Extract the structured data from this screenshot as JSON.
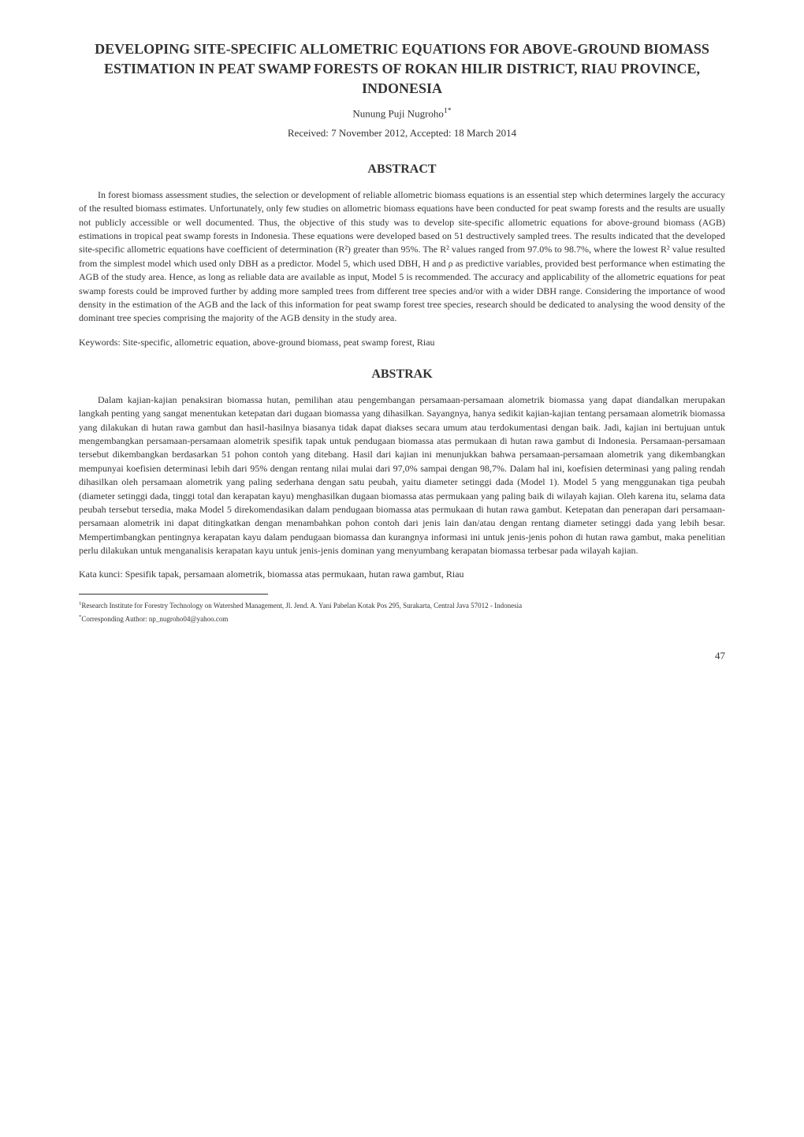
{
  "title": "DEVELOPING SITE-SPECIFIC ALLOMETRIC EQUATIONS FOR ABOVE-GROUND BIOMASS ESTIMATION IN PEAT SWAMP FORESTS OF ROKAN HILIR DISTRICT, RIAU PROVINCE, INDONESIA",
  "author": "Nunung Puji Nugroho",
  "author_sup": "1*",
  "dates": "Received: 7 November 2012, Accepted: 18 March 2014",
  "abstract": {
    "heading": "ABSTRACT",
    "body": "In forest biomass assessment studies, the selection or development of reliable allometric biomass equations is an essential step which determines largely the accuracy of the resulted biomass estimates. Unfortunately, only few studies on allometric biomass equations have been conducted for peat swamp forests and the results are usually not publicly accessible or well documented. Thus, the objective of this study was to develop site-specific allometric equations for above-ground biomass (AGB) estimations in tropical peat swamp forests in Indonesia. These equations were developed based on 51 destructively sampled trees. The results indicated that the developed site-specific allometric equations have coefficient of determination (R²) greater than 95%. The R² values ranged from 97.0% to 98.7%, where the lowest R² value resulted from the simplest model which used only DBH as a predictor. Model 5, which used DBH, H and ρ as predictive variables, provided best performance when estimating the AGB of the study area. Hence, as long as reliable data are available as input, Model 5 is recommended. The accuracy and applicability of the allometric equations for peat swamp forests could be improved further by adding more sampled trees from different tree species and/or with a wider DBH range. Considering the importance of wood density in the estimation of the AGB and the lack of this information for peat swamp forest tree species, research should be dedicated to analysing the wood density of the dominant tree species comprising the majority of the AGB density in the study area.",
    "keywords": "Keywords: Site-specific, allometric equation, above-ground biomass, peat swamp forest, Riau"
  },
  "abstrak": {
    "heading": "ABSTRAK",
    "body": "Dalam kajian-kajian penaksiran biomassa hutan, pemilihan atau pengembangan persamaan-persamaan alometrik biomassa yang dapat diandalkan merupakan langkah penting yang sangat menentukan ketepatan dari dugaan biomassa yang dihasilkan. Sayangnya, hanya sedikit kajian-kajian tentang persamaan alometrik biomassa yang dilakukan di hutan rawa gambut dan hasil-hasilnya biasanya tidak dapat diakses secara umum atau terdokumentasi dengan baik. Jadi, kajian ini bertujuan untuk mengembangkan persamaan-persamaan alometrik spesifik tapak untuk pendugaan biomassa atas permukaan di hutan rawa gambut di Indonesia. Persamaan-persamaan tersebut dikembangkan berdasarkan 51 pohon contoh yang ditebang. Hasil dari kajian ini menunjukkan bahwa persamaan-persamaan alometrik yang dikembangkan mempunyai koefisien determinasi lebih dari 95% dengan rentang nilai mulai dari 97,0% sampai dengan 98,7%. Dalam hal ini, koefisien determinasi yang paling rendah dihasilkan oleh persamaan alometrik yang paling sederhana dengan satu peubah, yaitu diameter setinggi dada (Model 1). Model 5 yang menggunakan tiga peubah (diameter setinggi dada, tinggi total dan kerapatan kayu) menghasilkan dugaan biomassa atas permukaan yang paling baik di wilayah kajian. Oleh karena itu, selama data peubah tersebut tersedia, maka Model 5 direkomendasikan dalam pendugaan biomassa atas permukaan di hutan rawa gambut. Ketepatan dan penerapan dari persamaan-persamaan alometrik ini dapat ditingkatkan dengan menambahkan pohon contoh dari jenis lain dan/atau dengan rentang diameter setinggi dada yang lebih besar. Mempertimbangkan pentingnya kerapatan kayu dalam pendugaan biomassa dan kurangnya informasi ini untuk jenis-jenis pohon di hutan rawa gambut, maka penelitian perlu dilakukan untuk menganalisis kerapatan kayu untuk jenis-jenis dominan yang menyumbang kerapatan biomassa terbesar pada wilayah kajian.",
    "keywords": "Kata kunci: Spesifik tapak, persamaan alometrik, biomassa atas permukaan, hutan rawa gambut, Riau"
  },
  "footnotes": {
    "affiliation_sup": "1",
    "affiliation": "Research Institute for Forestry Technology on Watershed Management, Jl. Jend. A. Yani Pabelan Kotak Pos 295, Surakarta, Central Java 57012 - Indonesia",
    "corresponding_sup": "*",
    "corresponding": "Corresponding Author: np_nugroho04@yahoo.com"
  },
  "page_number": "47"
}
